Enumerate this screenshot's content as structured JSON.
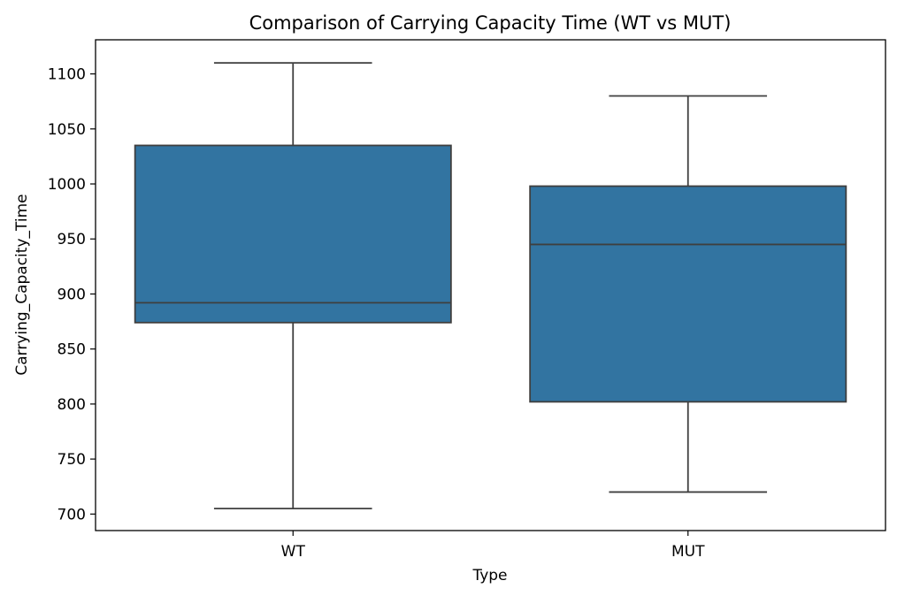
{
  "chart_data": {
    "type": "box",
    "title": "Comparison of Carrying Capacity Time (WT vs MUT)",
    "xlabel": "Type",
    "ylabel": "Carrying_Capacity_Time",
    "categories": [
      "WT",
      "MUT"
    ],
    "boxes": [
      {
        "category": "WT",
        "whisker_low": 705,
        "q1": 874,
        "median": 892,
        "q3": 1035,
        "whisker_high": 1110
      },
      {
        "category": "MUT",
        "whisker_low": 720,
        "q1": 802,
        "median": 945,
        "q3": 998,
        "whisker_high": 1080
      }
    ],
    "ylim": [
      685,
      1131
    ],
    "yticks": [
      700,
      750,
      800,
      850,
      900,
      950,
      1000,
      1050,
      1100
    ],
    "grid": false,
    "colors": {
      "box_fill": "#3274a1",
      "line": "#3f3f3f",
      "axes": "#000000"
    }
  }
}
